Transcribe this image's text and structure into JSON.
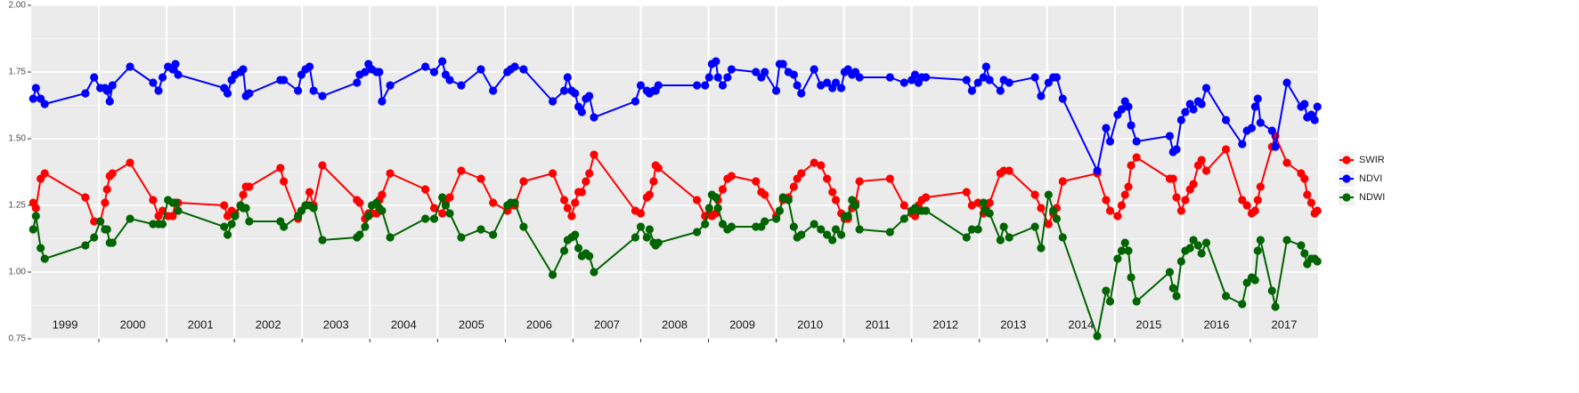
{
  "chart_data": {
    "type": "line",
    "x": [
      1999.03,
      1999.07,
      1999.14,
      1999.2,
      1999.8,
      1999.93,
      2000.02,
      2000.09,
      2000.12,
      2000.16,
      2000.2,
      2000.46,
      2000.8,
      2000.88,
      2000.94,
      2001.02,
      2001.09,
      2001.13,
      2001.17,
      2001.85,
      2001.9,
      2001.96,
      2002.01,
      2002.09,
      2002.13,
      2002.17,
      2002.22,
      2002.68,
      2002.73,
      2002.94,
      2002.99,
      2003.05,
      2003.11,
      2003.17,
      2003.3,
      2003.81,
      2003.85,
      2003.93,
      2003.98,
      2004.03,
      2004.1,
      2004.14,
      2004.18,
      2004.3,
      2004.82,
      2004.95,
      2005.07,
      2005.12,
      2005.18,
      2005.35,
      2005.64,
      2005.82,
      2006.03,
      2006.08,
      2006.14,
      2006.27,
      2006.7,
      2006.87,
      2006.92,
      2006.98,
      2007.03,
      2007.08,
      2007.13,
      2007.19,
      2007.24,
      2007.31,
      2007.92,
      2008.0,
      2008.09,
      2008.13,
      2008.19,
      2008.22,
      2008.26,
      2008.83,
      2008.95,
      2009.01,
      2009.05,
      2009.11,
      2009.14,
      2009.21,
      2009.28,
      2009.34,
      2009.7,
      2009.78,
      2009.83,
      2010.0,
      2010.05,
      2010.1,
      2010.18,
      2010.26,
      2010.31,
      2010.37,
      2010.56,
      2010.66,
      2010.75,
      2010.83,
      2010.88,
      2010.96,
      2011.01,
      2011.06,
      2011.12,
      2011.17,
      2011.23,
      2011.68,
      2011.89,
      2012.0,
      2012.05,
      2012.1,
      2012.15,
      2012.21,
      2012.81,
      2012.89,
      2012.98,
      2013.06,
      2013.1,
      2013.15,
      2013.31,
      2013.36,
      2013.44,
      2013.82,
      2013.91,
      2014.02,
      2014.09,
      2014.14,
      2014.23,
      2014.74,
      2014.87,
      2014.93,
      2015.04,
      2015.1,
      2015.15,
      2015.2,
      2015.24,
      2015.32,
      2015.81,
      2015.86,
      2015.91,
      2015.98,
      2016.04,
      2016.11,
      2016.16,
      2016.23,
      2016.28,
      2016.35,
      2016.64,
      2016.88,
      2016.95,
      2017.02,
      2017.07,
      2017.11,
      2017.15,
      2017.32,
      2017.37,
      2017.54,
      2017.75,
      2017.8,
      2017.84,
      2017.9,
      2017.95,
      2017.99
    ],
    "series": [
      {
        "name": "SWIR",
        "color": "#ff0000",
        "values": [
          1.26,
          1.24,
          1.35,
          1.37,
          1.28,
          1.19,
          1.19,
          1.26,
          1.31,
          1.36,
          1.37,
          1.41,
          1.27,
          1.21,
          1.23,
          1.21,
          1.21,
          1.26,
          1.26,
          1.25,
          1.21,
          1.23,
          1.22,
          1.25,
          1.29,
          1.32,
          1.32,
          1.39,
          1.34,
          1.2,
          1.23,
          1.25,
          1.3,
          1.25,
          1.4,
          1.27,
          1.26,
          1.2,
          1.22,
          1.22,
          1.22,
          1.27,
          1.29,
          1.37,
          1.31,
          1.24,
          1.22,
          1.26,
          1.28,
          1.38,
          1.35,
          1.26,
          1.23,
          1.25,
          1.25,
          1.34,
          1.37,
          1.27,
          1.24,
          1.21,
          1.26,
          1.3,
          1.3,
          1.34,
          1.37,
          1.44,
          1.23,
          1.22,
          1.28,
          1.29,
          1.34,
          1.4,
          1.39,
          1.27,
          1.21,
          1.22,
          1.21,
          1.22,
          1.27,
          1.31,
          1.35,
          1.36,
          1.34,
          1.3,
          1.29,
          1.21,
          1.23,
          1.27,
          1.28,
          1.32,
          1.35,
          1.37,
          1.41,
          1.4,
          1.35,
          1.3,
          1.27,
          1.22,
          1.2,
          1.2,
          1.24,
          1.26,
          1.34,
          1.35,
          1.25,
          1.22,
          1.21,
          1.25,
          1.27,
          1.28,
          1.3,
          1.25,
          1.26,
          1.22,
          1.24,
          1.26,
          1.37,
          1.38,
          1.38,
          1.29,
          1.24,
          1.18,
          1.22,
          1.24,
          1.34,
          1.37,
          1.27,
          1.23,
          1.21,
          1.25,
          1.29,
          1.32,
          1.4,
          1.43,
          1.35,
          1.35,
          1.28,
          1.23,
          1.27,
          1.31,
          1.33,
          1.4,
          1.42,
          1.38,
          1.46,
          1.27,
          1.25,
          1.22,
          1.23,
          1.27,
          1.32,
          1.47,
          1.51,
          1.41,
          1.37,
          1.35,
          1.29,
          1.26,
          1.22,
          1.23
        ]
      },
      {
        "name": "NDVI",
        "color": "#0000ff",
        "values": [
          1.65,
          1.69,
          1.65,
          1.63,
          1.67,
          1.73,
          1.69,
          1.69,
          1.68,
          1.64,
          1.7,
          1.77,
          1.71,
          1.68,
          1.73,
          1.77,
          1.76,
          1.78,
          1.74,
          1.69,
          1.67,
          1.72,
          1.74,
          1.75,
          1.76,
          1.66,
          1.67,
          1.72,
          1.72,
          1.68,
          1.74,
          1.76,
          1.77,
          1.68,
          1.66,
          1.71,
          1.74,
          1.75,
          1.78,
          1.76,
          1.75,
          1.75,
          1.64,
          1.7,
          1.77,
          1.75,
          1.79,
          1.74,
          1.72,
          1.7,
          1.76,
          1.68,
          1.75,
          1.76,
          1.77,
          1.76,
          1.64,
          1.68,
          1.73,
          1.68,
          1.67,
          1.62,
          1.6,
          1.65,
          1.66,
          1.58,
          1.64,
          1.7,
          1.68,
          1.67,
          1.68,
          1.68,
          1.7,
          1.7,
          1.7,
          1.73,
          1.78,
          1.79,
          1.73,
          1.7,
          1.73,
          1.76,
          1.75,
          1.73,
          1.75,
          1.68,
          1.78,
          1.78,
          1.75,
          1.74,
          1.7,
          1.67,
          1.76,
          1.7,
          1.71,
          1.69,
          1.71,
          1.69,
          1.75,
          1.76,
          1.74,
          1.75,
          1.73,
          1.73,
          1.71,
          1.72,
          1.74,
          1.71,
          1.73,
          1.73,
          1.72,
          1.68,
          1.71,
          1.73,
          1.77,
          1.72,
          1.68,
          1.72,
          1.71,
          1.73,
          1.66,
          1.71,
          1.73,
          1.73,
          1.65,
          1.38,
          1.54,
          1.49,
          1.59,
          1.61,
          1.64,
          1.62,
          1.55,
          1.49,
          1.51,
          1.45,
          1.46,
          1.57,
          1.6,
          1.63,
          1.61,
          1.64,
          1.63,
          1.69,
          1.57,
          1.48,
          1.53,
          1.54,
          1.62,
          1.65,
          1.56,
          1.53,
          1.47,
          1.71,
          1.62,
          1.63,
          1.58,
          1.59,
          1.57,
          1.62
        ]
      },
      {
        "name": "NDWI",
        "color": "#006400",
        "values": [
          1.16,
          1.21,
          1.09,
          1.05,
          1.1,
          1.13,
          1.19,
          1.16,
          1.16,
          1.11,
          1.11,
          1.2,
          1.18,
          1.18,
          1.18,
          1.27,
          1.26,
          1.26,
          1.23,
          1.17,
          1.14,
          1.18,
          1.21,
          1.25,
          1.24,
          1.24,
          1.19,
          1.19,
          1.17,
          1.21,
          1.23,
          1.25,
          1.25,
          1.24,
          1.12,
          1.13,
          1.14,
          1.17,
          1.21,
          1.25,
          1.26,
          1.24,
          1.23,
          1.13,
          1.2,
          1.2,
          1.28,
          1.25,
          1.22,
          1.13,
          1.16,
          1.14,
          1.25,
          1.26,
          1.26,
          1.17,
          0.99,
          1.08,
          1.12,
          1.13,
          1.14,
          1.09,
          1.06,
          1.07,
          1.06,
          1.0,
          1.13,
          1.17,
          1.13,
          1.16,
          1.11,
          1.1,
          1.11,
          1.15,
          1.18,
          1.24,
          1.29,
          1.28,
          1.24,
          1.18,
          1.16,
          1.17,
          1.17,
          1.17,
          1.19,
          1.2,
          1.23,
          1.28,
          1.27,
          1.17,
          1.13,
          1.14,
          1.18,
          1.16,
          1.14,
          1.12,
          1.16,
          1.14,
          1.21,
          1.21,
          1.27,
          1.25,
          1.16,
          1.15,
          1.2,
          1.23,
          1.24,
          1.23,
          1.23,
          1.23,
          1.13,
          1.16,
          1.16,
          1.26,
          1.23,
          1.22,
          1.12,
          1.17,
          1.13,
          1.17,
          1.09,
          1.29,
          1.23,
          1.2,
          1.13,
          0.76,
          0.93,
          0.89,
          1.05,
          1.08,
          1.11,
          1.08,
          0.98,
          0.89,
          1.0,
          0.94,
          0.91,
          1.04,
          1.08,
          1.09,
          1.12,
          1.1,
          1.07,
          1.11,
          0.91,
          0.88,
          0.96,
          0.98,
          0.97,
          1.08,
          1.12,
          0.93,
          0.87,
          1.12,
          1.1,
          1.07,
          1.03,
          1.05,
          1.05,
          1.04
        ]
      }
    ],
    "xlim": [
      1999,
      2018
    ],
    "xticks": [
      {
        "value": 1999.5,
        "label": "1999"
      },
      {
        "value": 2000.5,
        "label": "2000"
      },
      {
        "value": 2001.5,
        "label": "2001"
      },
      {
        "value": 2002.5,
        "label": "2002"
      },
      {
        "value": 2003.5,
        "label": "2003"
      },
      {
        "value": 2004.5,
        "label": "2004"
      },
      {
        "value": 2005.5,
        "label": "2005"
      },
      {
        "value": 2006.5,
        "label": "2006"
      },
      {
        "value": 2007.5,
        "label": "2007"
      },
      {
        "value": 2008.5,
        "label": "2008"
      },
      {
        "value": 2009.5,
        "label": "2009"
      },
      {
        "value": 2010.5,
        "label": "2010"
      },
      {
        "value": 2011.5,
        "label": "2011"
      },
      {
        "value": 2012.5,
        "label": "2012"
      },
      {
        "value": 2013.5,
        "label": "2013"
      },
      {
        "value": 2014.5,
        "label": "2014"
      },
      {
        "value": 2015.5,
        "label": "2015"
      },
      {
        "value": 2016.5,
        "label": "2016"
      },
      {
        "value": 2017.5,
        "label": "2017"
      }
    ],
    "ylim": [
      0.75,
      2.0
    ],
    "yticks": [
      0.75,
      {
        "value": 1.0,
        "label": "1.00"
      },
      1.25,
      {
        "value": 1.5,
        "label": "1.50"
      },
      1.75,
      {
        "value": 2.0,
        "label": "2.00"
      }
    ],
    "grid": true,
    "legend": "right"
  }
}
